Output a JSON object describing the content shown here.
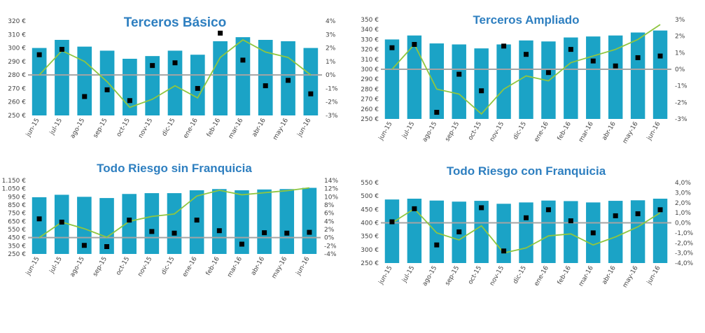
{
  "style": {
    "bar_color": "#1ba3c6",
    "line_color": "#8fc640",
    "zero_line_color": "#a4a4a4",
    "marker_color": "#000000",
    "title_color": "#2e7fc0"
  },
  "chart_data": [
    {
      "type": "bar",
      "title": "Terceros Básico",
      "categories": [
        "jun-15",
        "jul-15",
        "ago-15",
        "sep-15",
        "oct-15",
        "nov-15",
        "dic-15",
        "ene-16",
        "feb-16",
        "mar-16",
        "abr-16",
        "may-16",
        "jun-16"
      ],
      "y_ticks": [
        "250 €",
        "260 €",
        "270 €",
        "280 €",
        "290 €",
        "300 €",
        "310 €",
        "320 €"
      ],
      "y_range": [
        250,
        320
      ],
      "y2_ticks": [
        "-3%",
        "-2%",
        "-1%",
        "0%",
        "1%",
        "2%",
        "3%",
        "4%"
      ],
      "y2_range": [
        -3,
        4
      ],
      "series": [
        {
          "values": [
            300,
            306,
            301,
            298,
            292,
            294,
            298,
            295,
            305,
            308,
            306,
            305,
            300
          ]
        },
        {
          "axis": "right",
          "style": "line",
          "values": [
            0,
            1.8,
            1.0,
            -0.5,
            -2.4,
            -1.8,
            -0.8,
            -1.7,
            1.3,
            2.6,
            1.7,
            1.3,
            0
          ]
        },
        {
          "axis": "right",
          "style": "marker",
          "values": [
            1.5,
            1.9,
            -1.6,
            -1.1,
            -1.9,
            0.7,
            0.9,
            -1.0,
            3.1,
            1.1,
            -0.8,
            -0.4,
            -1.4
          ]
        }
      ]
    },
    {
      "type": "bar",
      "title": "Terceros Ampliado",
      "categories": [
        "jun-15",
        "jul-15",
        "ago-15",
        "sep-15",
        "oct-15",
        "nov-15",
        "dic-15",
        "ene-16",
        "feb-16",
        "mar-16",
        "abr-16",
        "may-16",
        "jun-16"
      ],
      "y_ticks": [
        "250 €",
        "260 €",
        "270 €",
        "280 €",
        "290 €",
        "300 €",
        "310 €",
        "320 €",
        "330 €",
        "340 €",
        "350 €"
      ],
      "y_range": [
        250,
        350
      ],
      "y2_ticks": [
        "-3%",
        "-2%",
        "-1%",
        "0%",
        "1%",
        "2%",
        "3%"
      ],
      "y2_range": [
        -3,
        3
      ],
      "series": [
        {
          "values": [
            330,
            334,
            326,
            325,
            321,
            325,
            329,
            328,
            332,
            333,
            334,
            337,
            339
          ]
        },
        {
          "axis": "right",
          "style": "line",
          "values": [
            0,
            1.5,
            -1.2,
            -1.5,
            -2.7,
            -1.2,
            -0.4,
            -0.7,
            0.4,
            0.8,
            1.2,
            1.8,
            2.7
          ]
        },
        {
          "axis": "right",
          "style": "marker",
          "values": [
            1.3,
            1.5,
            -2.6,
            -0.3,
            -1.3,
            1.4,
            0.9,
            -0.2,
            1.2,
            0.5,
            0.2,
            0.7,
            0.8
          ]
        }
      ]
    },
    {
      "type": "bar",
      "title": "Todo Riesgo sin Franquicia",
      "categories": [
        "jun-15",
        "jul-15",
        "ago-15",
        "sep-15",
        "oct-15",
        "nov-15",
        "dic-15",
        "ene-16",
        "feb-16",
        "mar-16",
        "abr-16",
        "may-16",
        "jun-16"
      ],
      "y_ticks": [
        "250 €",
        "350 €",
        "450 €",
        "550 €",
        "650 €",
        "750 €",
        "850 €",
        "950 €",
        "1.050 €",
        "1.150 €"
      ],
      "y_range": [
        250,
        1150
      ],
      "y2_ticks": [
        "-4%",
        "-2%",
        "0%",
        "2%",
        "4%",
        "6%",
        "8%",
        "10%",
        "12%",
        "14%"
      ],
      "y2_range": [
        -4,
        14
      ],
      "series": [
        {
          "values": [
            945,
            975,
            950,
            935,
            985,
            995,
            995,
            1030,
            1045,
            1030,
            1040,
            1045,
            1060
          ]
        },
        {
          "axis": "right",
          "style": "line",
          "values": [
            0,
            3.8,
            2.2,
            0.1,
            4.0,
            5.2,
            5.8,
            10.2,
            11.6,
            10.5,
            11.0,
            11.5,
            12.2
          ]
        },
        {
          "axis": "right",
          "style": "marker",
          "values": [
            4.6,
            3.8,
            -1.9,
            -2.2,
            4.3,
            1.5,
            1.1,
            4.3,
            1.7,
            -1.6,
            1.2,
            1.1,
            1.3
          ]
        }
      ]
    },
    {
      "type": "bar",
      "title": "Todo Riesgo con Franquicia",
      "categories": [
        "jun-15",
        "jul-15",
        "ago-15",
        "sep-15",
        "oct-15",
        "nov-15",
        "dic-15",
        "ene-16",
        "feb-16",
        "mar-16",
        "abr-16",
        "may-16",
        "jun-16"
      ],
      "y_ticks": [
        "250 €",
        "300 €",
        "350 €",
        "400 €",
        "450 €",
        "500 €",
        "550 €"
      ],
      "y_range": [
        250,
        550
      ],
      "y2_ticks": [
        "-4,0%",
        "-3,0%",
        "-2,0%",
        "-1,0%",
        "0,0%",
        "1,0%",
        "2,0%",
        "3,0%",
        "4,0%"
      ],
      "y2_range": [
        -4,
        4
      ],
      "series": [
        {
          "values": [
            487,
            490,
            483,
            479,
            482,
            471,
            476,
            483,
            481,
            476,
            482,
            484,
            490
          ]
        },
        {
          "axis": "right",
          "style": "line",
          "values": [
            0,
            1.4,
            -1.0,
            -1.7,
            -0.3,
            -3.0,
            -2.5,
            -1.3,
            -1.1,
            -2.2,
            -1.4,
            -0.4,
            1.0
          ]
        },
        {
          "axis": "right",
          "style": "marker",
          "values": [
            0.1,
            1.4,
            -2.2,
            -0.9,
            1.5,
            -2.8,
            0.5,
            1.3,
            0.2,
            -1.0,
            0.7,
            0.9,
            1.3
          ]
        }
      ]
    }
  ]
}
